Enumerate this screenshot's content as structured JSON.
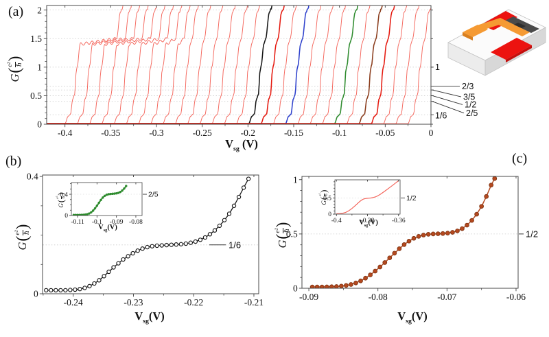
{
  "labels": {
    "v": "V",
    "sg": "sg",
    "unit": "(V)",
    "unit_spaced": " (V)",
    "g": "G",
    "e2": "e²",
    "hbar": "ℏ"
  },
  "panels": {
    "a": "(a)",
    "b": "(b)",
    "c": "(c)"
  },
  "device": {
    "name": "gated-nanowire-device-schematic",
    "colors": {
      "substrate_top": "#fbfbfb",
      "substrate_front": "#ececec",
      "substrate_side": "#d8d8d8",
      "edge": "#c2c2c2",
      "contact": "#ec1310",
      "contact_dark": "#c40e0c",
      "gate": "#f59a33",
      "gate_dark": "#d97f1e",
      "wire": "#4a4a4a",
      "wire_dark": "#2e2e2e"
    }
  },
  "chart_data": [
    {
      "id": "a",
      "type": "line",
      "title": "",
      "xlabel": "V_sg (V)",
      "ylabel": "G(e2/hbar)",
      "xlim": [
        -0.42,
        0
      ],
      "ylim": [
        0,
        2.08
      ],
      "grid": "dotted-at-fractions",
      "legend": "none",
      "xticks": {
        "values": [
          -0.4,
          -0.35,
          -0.3,
          -0.25,
          -0.2,
          -0.15,
          -0.1,
          -0.05,
          0
        ],
        "labels": [
          "-0.4",
          "-0.35",
          "-0.3",
          "-0.25",
          "-0.2",
          "-0.15",
          "-0.1",
          "-0.05",
          "0"
        ],
        "minor_step": 0.025
      },
      "yticks": {
        "values": [
          0,
          0.5,
          1,
          1.5,
          2
        ],
        "labels": [
          "0",
          "0.5",
          "1",
          "1.5",
          "2"
        ],
        "minor_step": 0.1
      },
      "grid_values": [
        0.1667,
        0.4,
        0.5,
        0.6,
        0.6667,
        1.0,
        1.5,
        2.0
      ],
      "right_labels": [
        {
          "text": "1",
          "value": 1.0,
          "leader": false,
          "lx": 634,
          "dy": 0
        },
        {
          "text": "2/3",
          "value": 0.6667,
          "leader": true,
          "lx": 673,
          "dy": 0
        },
        {
          "text": "3/5",
          "value": 0.6,
          "leader": true,
          "lx": 675,
          "dy": 10
        },
        {
          "text": "1/2",
          "value": 0.5,
          "leader": true,
          "lx": 677,
          "dy": 13
        },
        {
          "text": "2/5",
          "value": 0.4,
          "leader": true,
          "lx": 679,
          "dy": 17
        },
        {
          "text": "1/6",
          "value": 0.1667,
          "leader": false,
          "lx": 634,
          "dy": 1
        }
      ],
      "traces": {
        "count": 29,
        "onset_start": -0.4,
        "onset_step": 0.01339,
        "rise_knots": [
          [
            0,
            0.01
          ],
          [
            0.0035,
            0.14
          ],
          [
            0.006,
            0.175
          ],
          [
            0.0085,
            0.44
          ],
          [
            0.0105,
            0.52
          ],
          [
            0.0125,
            0.95
          ],
          [
            0.0135,
            1.02
          ],
          [
            0.0165,
            1.4
          ]
        ],
        "after_knots": [
          [
            0,
            1.5
          ],
          [
            0.004,
            1.96
          ],
          [
            0.006,
            2.02
          ],
          [
            0.009,
            2.32
          ]
        ],
        "plateau_base": 0.04,
        "plateau_decay": 0.0042,
        "plateau_min": 0.002,
        "plateau_traces": 9,
        "default_color": "#f4655b",
        "highlights": {
          "15": "#161616",
          "16": "#e5190f",
          "18": "#2e41cc",
          "22": "#2e8b2e",
          "24": "#8a3c1c",
          "25": "#e5190f"
        }
      }
    },
    {
      "id": "b",
      "type": "scatter",
      "title": "",
      "xlabel": "V_sg(V)",
      "ylabel": "G(e2/hbar)",
      "xlim": [
        -0.2451,
        -0.2092
      ],
      "ylim": [
        0,
        0.405
      ],
      "xticks": {
        "values": [
          -0.24,
          -0.23,
          -0.22,
          -0.21
        ],
        "labels": [
          "-0.24",
          "-0.23",
          "-0.22",
          "-0.21"
        ],
        "minor_step": 0.005
      },
      "yticks": {
        "values": [
          0,
          0.4
        ],
        "labels": [
          "0",
          "0.4"
        ],
        "minor_step": 0.1
      },
      "annotation": {
        "text": "1/6",
        "value": 0.1667,
        "style": "inside",
        "leader": [
          305,
          329
        ],
        "label_x": 333
      },
      "series": [
        {
          "name": "conductance-trace-black",
          "color": "#161616",
          "marker": "open",
          "lw": 1.3,
          "points": [
            [
              -0.2445,
              0.012
            ],
            [
              -0.2437,
              0.012
            ],
            [
              -0.2429,
              0.012
            ],
            [
              -0.2421,
              0.012
            ],
            [
              -0.2413,
              0.012
            ],
            [
              -0.2405,
              0.013
            ],
            [
              -0.2397,
              0.014
            ],
            [
              -0.2389,
              0.016
            ],
            [
              -0.2381,
              0.02
            ],
            [
              -0.2373,
              0.026
            ],
            [
              -0.2365,
              0.035
            ],
            [
              -0.2357,
              0.046
            ],
            [
              -0.2349,
              0.06
            ],
            [
              -0.2341,
              0.075
            ],
            [
              -0.2333,
              0.09
            ],
            [
              -0.2325,
              0.104
            ],
            [
              -0.2317,
              0.117
            ],
            [
              -0.2309,
              0.128
            ],
            [
              -0.2301,
              0.138
            ],
            [
              -0.2293,
              0.147
            ],
            [
              -0.2285,
              0.154
            ],
            [
              -0.2277,
              0.159
            ],
            [
              -0.2269,
              0.162
            ],
            [
              -0.2261,
              0.164
            ],
            [
              -0.2253,
              0.165
            ],
            [
              -0.2245,
              0.166
            ],
            [
              -0.2237,
              0.167
            ],
            [
              -0.2229,
              0.168
            ],
            [
              -0.2221,
              0.169
            ],
            [
              -0.2213,
              0.171
            ],
            [
              -0.2205,
              0.174
            ],
            [
              -0.2197,
              0.178
            ],
            [
              -0.2189,
              0.184
            ],
            [
              -0.2181,
              0.192
            ],
            [
              -0.2173,
              0.203
            ],
            [
              -0.2165,
              0.216
            ],
            [
              -0.2157,
              0.232
            ],
            [
              -0.2149,
              0.251
            ],
            [
              -0.2141,
              0.273
            ],
            [
              -0.2133,
              0.3
            ],
            [
              -0.2125,
              0.33
            ],
            [
              -0.2117,
              0.362
            ],
            [
              -0.2109,
              0.392
            ]
          ]
        }
      ],
      "inset": {
        "xlabel": "V_sg(V)",
        "ylabel": "G(e2/hbar)",
        "xlim": [
          -0.1132,
          -0.0768
        ],
        "ylim": [
          0,
          0.62
        ],
        "xticks": {
          "values": [
            -0.11,
            -0.1,
            -0.09,
            -0.08
          ],
          "labels": [
            "-0.11",
            "-0.1",
            "-0.09",
            "-0.08"
          ]
        },
        "yticks": {
          "values": [
            0,
            0.4
          ],
          "labels": [
            "0",
            "0.4"
          ],
          "minor_step": 0.1
        },
        "annotation": {
          "text": "2/5",
          "value": 0.4,
          "style": "outside"
        },
        "series": [
          {
            "name": "conductance-trace-green",
            "color": "#2e8b2e",
            "marker": "dot",
            "msize": 1.7,
            "lw": 2.0,
            "points": [
              [
                -0.112,
                0.01
              ],
              [
                -0.111,
                0.01
              ],
              [
                -0.11,
                0.01
              ],
              [
                -0.109,
                0.011
              ],
              [
                -0.108,
                0.012
              ],
              [
                -0.107,
                0.014
              ],
              [
                -0.106,
                0.018
              ],
              [
                -0.105,
                0.025
              ],
              [
                -0.104,
                0.038
              ],
              [
                -0.103,
                0.06
              ],
              [
                -0.102,
                0.092
              ],
              [
                -0.101,
                0.135
              ],
              [
                -0.1,
                0.185
              ],
              [
                -0.099,
                0.24
              ],
              [
                -0.098,
                0.293
              ],
              [
                -0.097,
                0.338
              ],
              [
                -0.096,
                0.371
              ],
              [
                -0.095,
                0.391
              ],
              [
                -0.094,
                0.401
              ],
              [
                -0.093,
                0.406
              ],
              [
                -0.092,
                0.409
              ],
              [
                -0.091,
                0.412
              ],
              [
                -0.09,
                0.417
              ],
              [
                -0.089,
                0.426
              ],
              [
                -0.088,
                0.443
              ],
              [
                -0.087,
                0.47
              ],
              [
                -0.086,
                0.508
              ],
              [
                -0.085,
                0.556
              ]
            ]
          }
        ]
      }
    },
    {
      "id": "c",
      "type": "scatter",
      "title": "",
      "xlabel": "V_sg(V)",
      "ylabel": "G(e2/hbar)",
      "xlim": [
        -0.091,
        -0.0597
      ],
      "ylim": [
        0,
        1.03
      ],
      "xticks": {
        "values": [
          -0.09,
          -0.08,
          -0.07,
          -0.06
        ],
        "labels": [
          "-0.09",
          "-0.08",
          "-0.07",
          "-0.06"
        ],
        "minor_step": 0.005
      },
      "yticks": {
        "values": [
          0,
          0.5,
          1
        ],
        "labels": [
          "0",
          "0.5",
          "1"
        ],
        "minor_step": 0.1
      },
      "annotation": {
        "text": "1/2",
        "value": 0.5,
        "style": "outside"
      },
      "series": [
        {
          "name": "conductance-trace-brown",
          "color": "#b5491f",
          "marker": "filled",
          "mstroke": "#7f3413",
          "lw": 1.5,
          "points": [
            [
              -0.0895,
              0.012
            ],
            [
              -0.0888,
              0.012
            ],
            [
              -0.0881,
              0.012
            ],
            [
              -0.0874,
              0.013
            ],
            [
              -0.0867,
              0.014
            ],
            [
              -0.086,
              0.016
            ],
            [
              -0.0853,
              0.02
            ],
            [
              -0.0846,
              0.026
            ],
            [
              -0.0839,
              0.035
            ],
            [
              -0.0832,
              0.049
            ],
            [
              -0.0825,
              0.068
            ],
            [
              -0.0818,
              0.093
            ],
            [
              -0.0811,
              0.123
            ],
            [
              -0.0804,
              0.158
            ],
            [
              -0.0797,
              0.196
            ],
            [
              -0.079,
              0.237
            ],
            [
              -0.0783,
              0.28
            ],
            [
              -0.0776,
              0.323
            ],
            [
              -0.0769,
              0.364
            ],
            [
              -0.0762,
              0.402
            ],
            [
              -0.0755,
              0.434
            ],
            [
              -0.0748,
              0.46
            ],
            [
              -0.0741,
              0.478
            ],
            [
              -0.0734,
              0.49
            ],
            [
              -0.0727,
              0.497
            ],
            [
              -0.072,
              0.5
            ],
            [
              -0.0713,
              0.502
            ],
            [
              -0.0706,
              0.504
            ],
            [
              -0.0699,
              0.508
            ],
            [
              -0.0692,
              0.515
            ],
            [
              -0.0685,
              0.528
            ],
            [
              -0.0678,
              0.549
            ],
            [
              -0.0671,
              0.581
            ],
            [
              -0.0664,
              0.625
            ],
            [
              -0.0657,
              0.682
            ],
            [
              -0.065,
              0.754
            ],
            [
              -0.0643,
              0.845
            ],
            [
              -0.0636,
              0.95
            ],
            [
              -0.0631,
              1.01
            ]
          ]
        }
      ],
      "inset": {
        "xlabel": "V_sg(V)",
        "ylabel": "G(e2/hbar)",
        "xlim": [
          -0.401,
          -0.359
        ],
        "ylim": [
          0,
          1.06
        ],
        "xticks": {
          "values": [
            -0.4,
            -0.38,
            -0.36
          ],
          "labels": [
            "-0.4",
            "-0.38",
            "-0.36"
          ],
          "minor_step": 0.01
        },
        "yticks": {
          "values": [
            0,
            0.5
          ],
          "labels": [
            "0",
            "0.5"
          ],
          "minor_step": 0.1
        },
        "annotation": {
          "text": "1/2",
          "value": 0.5,
          "style": "outside"
        },
        "series": [
          {
            "name": "conductance-trace-red",
            "color": "#f4655b",
            "marker": "none",
            "lw": 1.2,
            "points": [
              [
                -0.4,
                0.012
              ],
              [
                -0.398,
                0.016
              ],
              [
                -0.396,
                0.028
              ],
              [
                -0.394,
                0.055
              ],
              [
                -0.392,
                0.105
              ],
              [
                -0.39,
                0.175
              ],
              [
                -0.388,
                0.258
              ],
              [
                -0.386,
                0.345
              ],
              [
                -0.385,
                0.39
              ],
              [
                -0.384,
                0.428
              ],
              [
                -0.383,
                0.456
              ],
              [
                -0.382,
                0.474
              ],
              [
                -0.381,
                0.484
              ],
              [
                -0.38,
                0.49
              ],
              [
                -0.379,
                0.494
              ],
              [
                -0.378,
                0.499
              ],
              [
                -0.377,
                0.506
              ],
              [
                -0.376,
                0.517
              ],
              [
                -0.375,
                0.532
              ],
              [
                -0.374,
                0.552
              ],
              [
                -0.372,
                0.605
              ],
              [
                -0.37,
                0.67
              ],
              [
                -0.368,
                0.74
              ],
              [
                -0.366,
                0.812
              ],
              [
                -0.364,
                0.885
              ],
              [
                -0.362,
                0.958
              ],
              [
                -0.36,
                1.03
              ]
            ]
          }
        ]
      }
    }
  ]
}
